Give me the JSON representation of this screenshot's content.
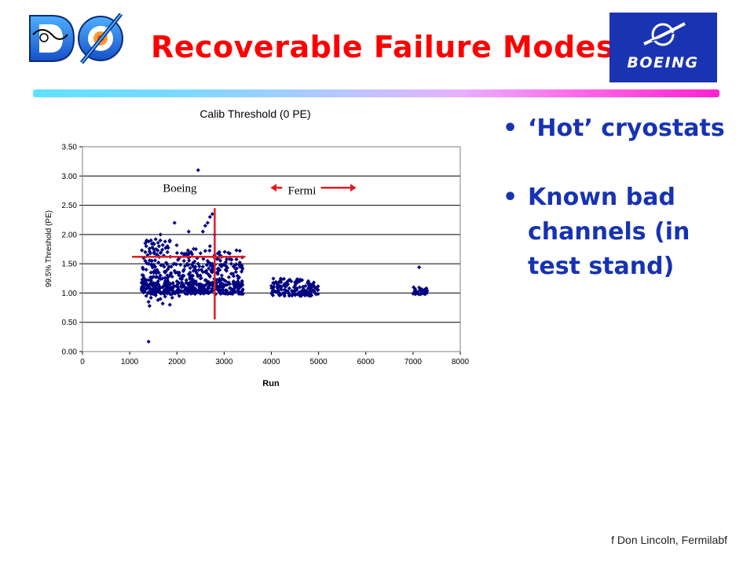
{
  "slide": {
    "title": "Recoverable Failure Modes",
    "footer": "f Don Lincoln, Fermilabf",
    "logos": {
      "d0_text": "DØ",
      "boeing_text": "BOEING"
    },
    "bullets": [
      {
        "marker": "•",
        "text": "‘Hot’ cryostats"
      },
      {
        "marker": "•",
        "text": "Known bad channels (in test stand)"
      }
    ],
    "colors": {
      "title": "#ff0000",
      "bullet_text": "#1733b3",
      "marker": "#000080",
      "annotation": "#e31b23",
      "boeing_bg": "#1a33b3"
    }
  },
  "chart_data": {
    "type": "scatter",
    "title": "Calib Threshold (0 PE)",
    "xlabel": "Run",
    "ylabel": "99.5% Threshold (PE)",
    "xlim": [
      0,
      8000
    ],
    "ylim": [
      0,
      3.5
    ],
    "xticks": [
      "0",
      "1000",
      "2000",
      "3000",
      "4000",
      "5000",
      "6000",
      "7000",
      "8000"
    ],
    "yticks": [
      "0.00",
      "0.50",
      "1.00",
      "1.50",
      "2.00",
      "2.50",
      "3.00",
      "3.50"
    ],
    "grid": "horizontal",
    "annotations": [
      {
        "text": "Boeing"
      },
      {
        "text": "Fermi"
      }
    ],
    "clusters": [
      {
        "run_range": [
          1250,
          3400
        ],
        "threshold_range": [
          0.78,
          2.35
        ],
        "description": "Boeing test runs"
      },
      {
        "run_range": [
          4000,
          5000
        ],
        "threshold_range": [
          0.95,
          1.25
        ],
        "description": "Fermi runs"
      },
      {
        "run_range": [
          7000,
          7300
        ],
        "threshold_range": [
          0.98,
          1.1
        ],
        "description": "Fermi runs"
      }
    ],
    "series": [
      {
        "name": "",
        "points": [
          [
            2450,
            3.1
          ],
          [
            1400,
            0.17
          ],
          [
            2700,
            2.3
          ],
          [
            2750,
            2.35
          ],
          [
            2650,
            2.2
          ],
          [
            2600,
            2.15
          ],
          [
            1950,
            2.2
          ],
          [
            2550,
            2.05
          ],
          [
            2250,
            2.05
          ],
          [
            1650,
            2.0
          ],
          [
            1850,
            1.9
          ],
          [
            2800,
            2.0
          ],
          [
            1330,
            1.85
          ],
          [
            1360,
            1.9
          ],
          [
            1400,
            1.88
          ],
          [
            1450,
            1.9
          ],
          [
            1500,
            1.85
          ],
          [
            1550,
            1.92
          ],
          [
            1600,
            1.86
          ],
          [
            1650,
            1.9
          ],
          [
            1700,
            1.82
          ],
          [
            1750,
            1.88
          ],
          [
            1800,
            1.8
          ],
          [
            1350,
            1.8
          ],
          [
            1420,
            1.76
          ],
          [
            1480,
            1.78
          ],
          [
            1560,
            1.75
          ],
          [
            1620,
            1.8
          ],
          [
            1690,
            1.74
          ],
          [
            1760,
            1.77
          ],
          [
            1330,
            1.7
          ],
          [
            1380,
            1.65
          ],
          [
            1440,
            1.68
          ],
          [
            1520,
            1.7
          ],
          [
            1580,
            1.66
          ],
          [
            1660,
            1.69
          ],
          [
            1720,
            1.64
          ],
          [
            1800,
            1.7
          ],
          [
            1860,
            1.62
          ],
          [
            1330,
            1.55
          ],
          [
            1400,
            1.5
          ],
          [
            1470,
            1.55
          ],
          [
            1540,
            1.45
          ],
          [
            1610,
            1.52
          ],
          [
            1700,
            1.48
          ],
          [
            1780,
            1.5
          ],
          [
            1880,
            1.45
          ],
          [
            1950,
            1.5
          ],
          [
            2050,
            1.6
          ],
          [
            2150,
            1.55
          ],
          [
            2250,
            1.6
          ],
          [
            2350,
            1.52
          ],
          [
            2450,
            1.5
          ],
          [
            2550,
            1.45
          ],
          [
            2650,
            1.55
          ],
          [
            2750,
            1.5
          ],
          [
            2850,
            1.58
          ],
          [
            2950,
            1.62
          ],
          [
            3050,
            1.45
          ],
          [
            3150,
            1.5
          ],
          [
            2300,
            1.7
          ],
          [
            2400,
            1.75
          ],
          [
            2500,
            1.68
          ],
          [
            2600,
            1.72
          ],
          [
            2700,
            1.8
          ],
          [
            2800,
            1.65
          ],
          [
            2900,
            1.7
          ],
          [
            1350,
            1.4
          ],
          [
            1450,
            1.35
          ],
          [
            1550,
            1.38
          ],
          [
            1650,
            1.3
          ],
          [
            1750,
            1.35
          ],
          [
            1850,
            1.3
          ],
          [
            1950,
            1.38
          ],
          [
            2050,
            1.35
          ],
          [
            2150,
            1.4
          ],
          [
            2250,
            1.32
          ],
          [
            2350,
            1.38
          ],
          [
            2450,
            1.3
          ],
          [
            2550,
            1.36
          ],
          [
            2650,
            1.33
          ],
          [
            2750,
            1.4
          ],
          [
            2850,
            1.35
          ],
          [
            2950,
            1.3
          ],
          [
            3050,
            1.38
          ],
          [
            3150,
            1.33
          ],
          [
            3250,
            1.36
          ],
          [
            1300,
            1.25
          ],
          [
            1400,
            1.22
          ],
          [
            1500,
            1.28
          ],
          [
            1600,
            1.2
          ],
          [
            1700,
            1.25
          ],
          [
            1800,
            1.22
          ],
          [
            1900,
            1.28
          ],
          [
            2000,
            1.2
          ],
          [
            2100,
            1.25
          ],
          [
            2200,
            1.22
          ],
          [
            2300,
            1.27
          ],
          [
            2400,
            1.2
          ],
          [
            2500,
            1.25
          ],
          [
            2600,
            1.22
          ],
          [
            2700,
            1.28
          ],
          [
            2800,
            1.2
          ],
          [
            2900,
            1.24
          ],
          [
            3000,
            1.22
          ],
          [
            3100,
            1.27
          ],
          [
            3200,
            1.2
          ],
          [
            3300,
            1.25
          ],
          [
            1300,
            1.12
          ],
          [
            1380,
            1.1
          ],
          [
            1460,
            1.15
          ],
          [
            1540,
            1.08
          ],
          [
            1620,
            1.12
          ],
          [
            1700,
            1.1
          ],
          [
            1780,
            1.14
          ],
          [
            1860,
            1.08
          ],
          [
            1940,
            1.12
          ],
          [
            2020,
            1.1
          ],
          [
            2100,
            1.15
          ],
          [
            2180,
            1.08
          ],
          [
            2260,
            1.12
          ],
          [
            2340,
            1.1
          ],
          [
            2420,
            1.14
          ],
          [
            2500,
            1.08
          ],
          [
            2580,
            1.12
          ],
          [
            2660,
            1.1
          ],
          [
            2740,
            1.14
          ],
          [
            2820,
            1.08
          ],
          [
            2900,
            1.12
          ],
          [
            2980,
            1.1
          ],
          [
            3060,
            1.14
          ],
          [
            3140,
            1.08
          ],
          [
            3220,
            1.12
          ],
          [
            3300,
            1.1
          ],
          [
            3380,
            1.13
          ],
          [
            1300,
            1.02
          ],
          [
            1380,
            1.0
          ],
          [
            1460,
            1.04
          ],
          [
            1540,
            0.98
          ],
          [
            1620,
            1.02
          ],
          [
            1700,
            1.0
          ],
          [
            1780,
            1.04
          ],
          [
            1860,
            0.98
          ],
          [
            1940,
            1.02
          ],
          [
            2020,
            1.0
          ],
          [
            2100,
            1.03
          ],
          [
            2180,
            0.99
          ],
          [
            2260,
            1.02
          ],
          [
            2340,
            1.0
          ],
          [
            2420,
            1.04
          ],
          [
            2500,
            0.99
          ],
          [
            2580,
            1.02
          ],
          [
            2660,
            1.0
          ],
          [
            2740,
            1.03
          ],
          [
            2820,
            0.98
          ],
          [
            2900,
            1.02
          ],
          [
            2980,
            1.0
          ],
          [
            3060,
            1.04
          ],
          [
            3140,
            0.99
          ],
          [
            3220,
            1.02
          ],
          [
            3300,
            1.0
          ],
          [
            3380,
            1.03
          ],
          [
            1350,
            0.95
          ],
          [
            1450,
            0.92
          ],
          [
            1550,
            0.96
          ],
          [
            1650,
            0.9
          ],
          [
            1750,
            0.94
          ],
          [
            1900,
            0.92
          ],
          [
            2050,
            0.95
          ],
          [
            1400,
            0.85
          ],
          [
            1600,
            0.88
          ],
          [
            1850,
            0.8
          ],
          [
            1420,
            0.78
          ],
          [
            1700,
            0.82
          ],
          [
            4050,
            1.05
          ],
          [
            4100,
            1.02
          ],
          [
            4200,
            1.1
          ],
          [
            4250,
            1.0
          ],
          [
            4300,
            1.05
          ],
          [
            4350,
            1.15
          ],
          [
            4380,
            1.08
          ],
          [
            4420,
            1.2
          ],
          [
            4450,
            1.02
          ],
          [
            4480,
            1.1
          ],
          [
            4500,
            1.05
          ],
          [
            4550,
            1.18
          ],
          [
            4580,
            1.0
          ],
          [
            4600,
            1.1
          ],
          [
            4650,
            1.22
          ],
          [
            4700,
            1.05
          ],
          [
            4720,
            1.12
          ],
          [
            4750,
            1.0
          ],
          [
            4780,
            1.08
          ],
          [
            4800,
            1.15
          ],
          [
            4830,
            1.02
          ],
          [
            4850,
            1.1
          ],
          [
            4880,
            1.05
          ],
          [
            4900,
            1.18
          ],
          [
            4930,
            1.0
          ],
          [
            4950,
            1.08
          ],
          [
            4980,
            1.05
          ],
          [
            4550,
            0.98
          ],
          [
            4650,
            0.97
          ],
          [
            4850,
            0.96
          ],
          [
            4300,
            1.12
          ],
          [
            4600,
            1.2
          ],
          [
            4900,
            1.12
          ],
          [
            7050,
            1.0
          ],
          [
            7100,
            1.02
          ],
          [
            7130,
            1.44
          ],
          [
            7150,
            1.05
          ],
          [
            7180,
            0.99
          ],
          [
            7200,
            1.03
          ],
          [
            7230,
            1.0
          ],
          [
            7250,
            1.06
          ],
          [
            7280,
            1.02
          ],
          [
            7300,
            1.04
          ]
        ]
      }
    ]
  }
}
